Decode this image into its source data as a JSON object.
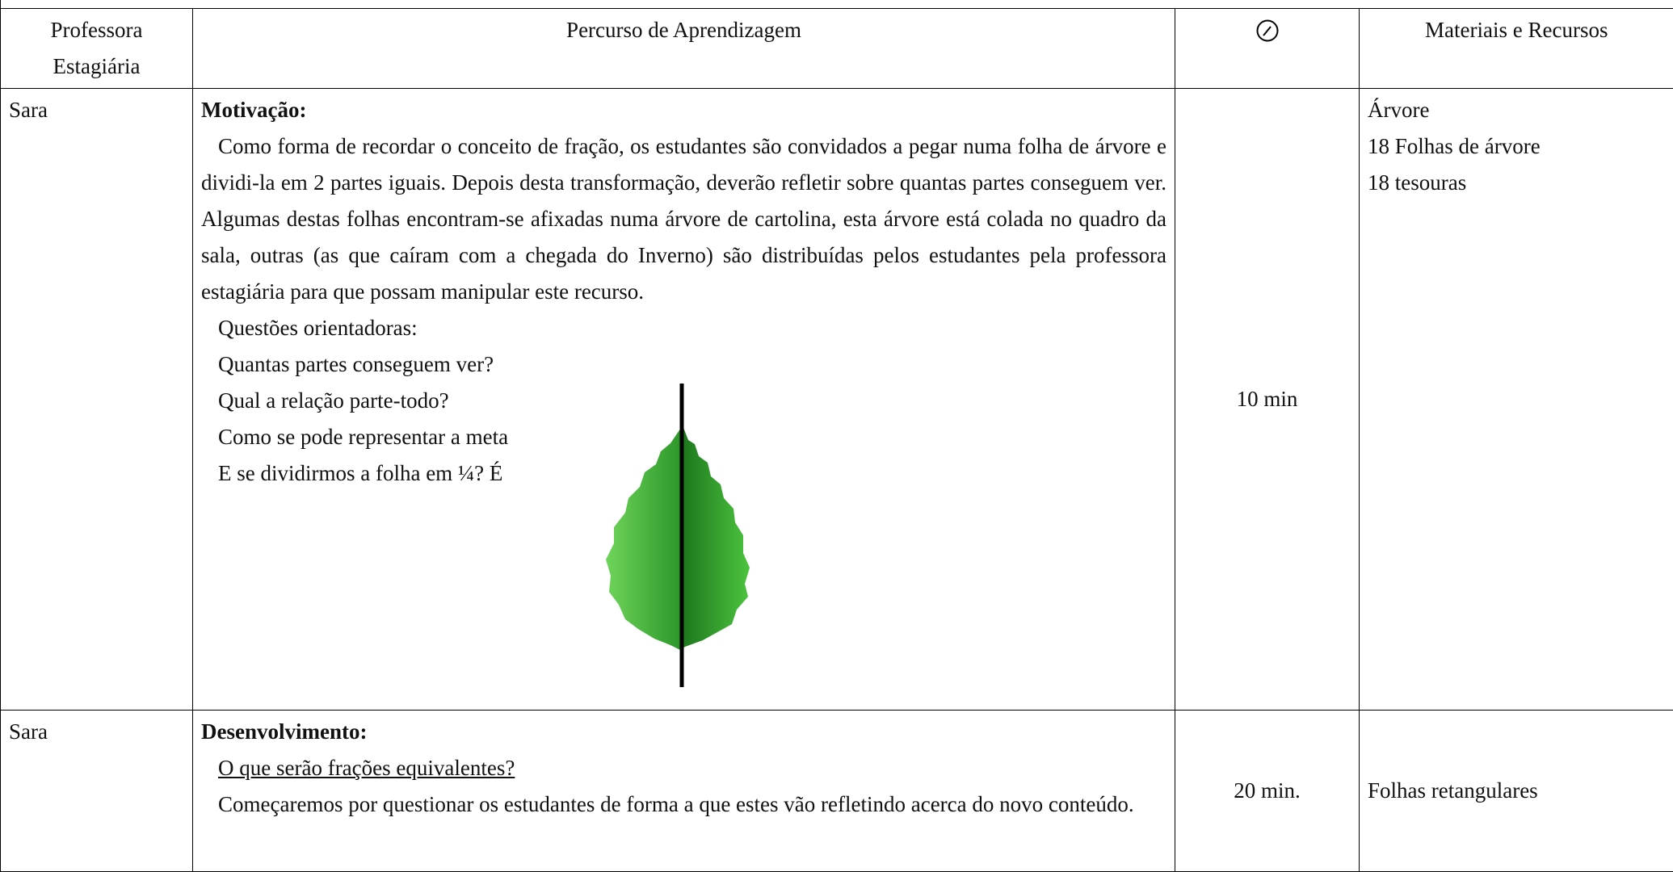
{
  "table": {
    "header": [
      "Professora Estagiária",
      "Percurso de Aprendizagem",
      "Materiais e Recursos"
    ],
    "rows": [
      {
        "teacher": "Sara",
        "title": "Motivação:",
        "paragraph": "Como forma de recordar o conceito de fração, os estudantes são convidados a pegar numa folha de árvore e dividi-la em 2 partes iguais. Depois desta transformação, deverão refletir sobre quantas partes conseguem ver. Algumas destas folhas encontram-se afixadas numa árvore de cartolina, esta árvore está colada no quadro da sala, outras (as que caíram com a chegada do Inverno) são distribuídas pelos estudantes pela professora estagiária para que possam manipular este recurso.",
        "lines": [
          "Questões orientadoras:",
          "Quantas partes conseguem ver?",
          "Qual a relação parte-todo?",
          "Como se pode representar a meta",
          "E se dividirmos a folha em ¼? É"
        ],
        "time": "10 min",
        "materials": [
          "Árvore",
          "18 Folhas de árvore",
          "18 tesouras"
        ]
      },
      {
        "teacher": "Sara",
        "title": "Desenvolvimento:",
        "lines": [
          "O que serão frações equivalentes?"
        ],
        "paragraph": "Começaremos por questionar os estudantes de forma a que estes vão refletindo acerca do novo conteúdo.",
        "time": "20 min.",
        "materials": [
          "Folhas retangulares"
        ]
      }
    ]
  }
}
